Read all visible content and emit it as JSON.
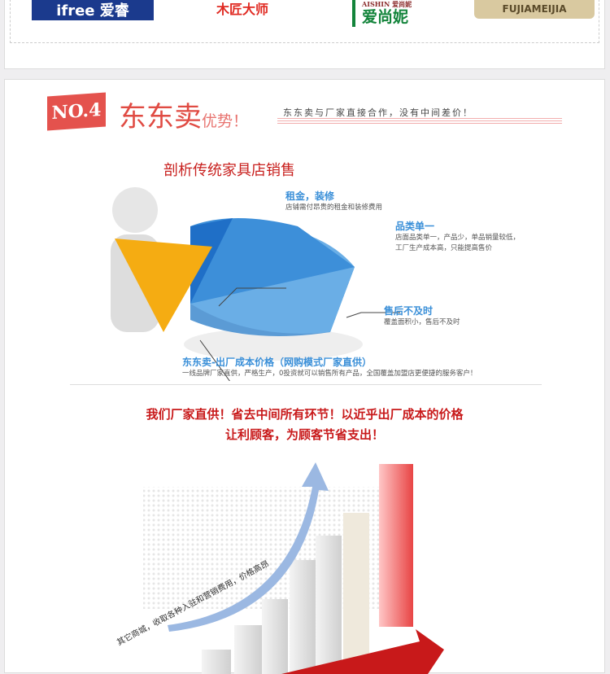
{
  "brands": [
    {
      "name": "ifree 爱睿",
      "text": "ifree 爱睿",
      "color": "#1b3a8d"
    },
    {
      "name": "木匠大师",
      "text": "木匠大师",
      "color": "#e02a22"
    },
    {
      "name": "AISHIN 爱尚妮",
      "text": "爱尚妮",
      "color": "#13843b"
    },
    {
      "name": "FUJIAMEIJIA",
      "text": "FUJIAMEIJIA",
      "color": "#d9c9a0"
    }
  ],
  "section": {
    "badge": "NO.4",
    "title": "东东卖",
    "title_suffix": "优势！",
    "slogan": "东东卖与厂家直接合作，没有中间差价！",
    "analysis_title": "剖析传统家具店销售",
    "callouts": [
      {
        "title": "租金，装修",
        "desc": "店铺需付昂贵的租金和装修费用"
      },
      {
        "title": "品类单一",
        "desc": "店面品类单一，产品少，单品销量较低，",
        "desc2": "工厂生产成本高，只能提高售价"
      },
      {
        "title": "售后不及时",
        "desc": "覆盖面积小，售后不及时"
      },
      {
        "title": "东东卖-出厂成本价格（网购模式厂家直供）",
        "desc": "一线品牌厂家直供，严格生产，0投资就可以销售所有产品，全国覆盖加盟店更便捷的服务客户！"
      }
    ],
    "headline1": "我们厂家直供！省去中间所有环节！以近乎出厂成本的价格",
    "headline2": "让利顾客，为顾客节省支出！",
    "arrow_text": "其它商城，收取各种入驻和营销费用，价格高昂"
  },
  "colors": {
    "accent": "#e4524d",
    "blue": "#3a8fd8",
    "red": "#c8191a"
  }
}
